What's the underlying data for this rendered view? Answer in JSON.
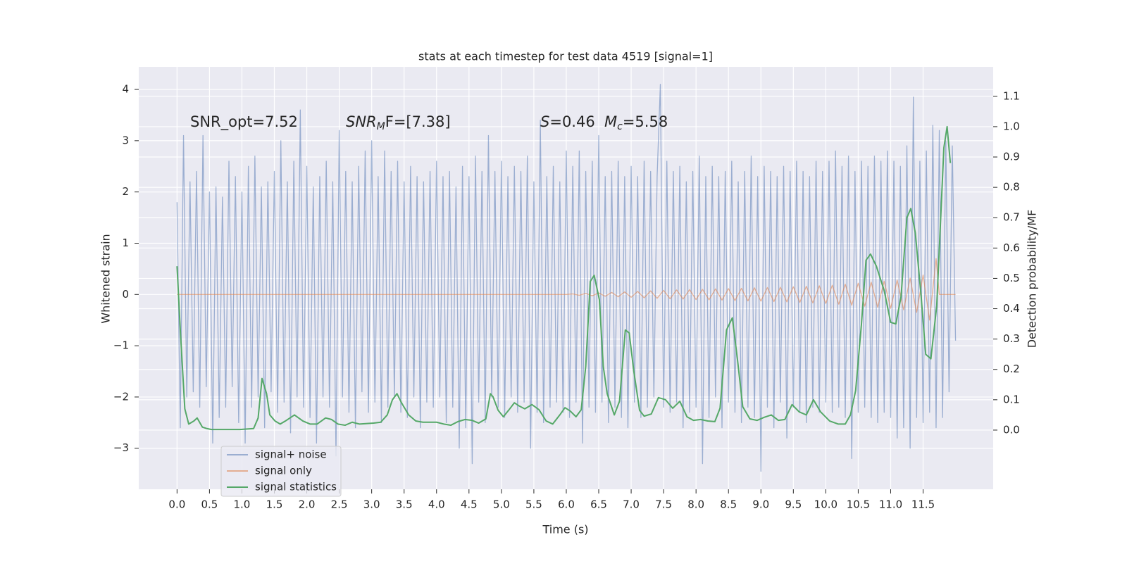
{
  "chart_data": {
    "type": "line",
    "title": "stats at each timestep for test data 4519 [signal=1]",
    "xlabel": "Time (s)",
    "ylabel": "Whitened strain",
    "y2label": "Detection probability/MF",
    "annotations": [
      {
        "parts": [
          "SNR_opt=7.52"
        ]
      },
      {
        "parts": [
          "SNR",
          "M",
          "F=[7.38]"
        ]
      },
      {
        "parts": [
          "S",
          "=0.46"
        ]
      },
      {
        "parts": [
          "M",
          "c",
          "=5.58"
        ]
      }
    ],
    "grid": true,
    "legend": "lower left",
    "xlim": [
      -0.59,
      12.58
    ],
    "ylim": [
      -3.8,
      4.44
    ],
    "y2lim": [
      -0.195,
      1.197
    ],
    "xticks": [
      {
        "value": 0,
        "label": "0.0"
      },
      {
        "value": 0.5,
        "label": "0.5"
      },
      {
        "value": 1,
        "label": "1.0"
      },
      {
        "value": 1.5,
        "label": "1.5"
      },
      {
        "value": 2,
        "label": "2.0"
      },
      {
        "value": 2.5,
        "label": "2.5"
      },
      {
        "value": 3,
        "label": "3.0"
      },
      {
        "value": 3.5,
        "label": "3.5"
      },
      {
        "value": 4,
        "label": "4.0"
      },
      {
        "value": 4.5,
        "label": "4.5"
      },
      {
        "value": 5,
        "label": "5.0"
      },
      {
        "value": 5.5,
        "label": "5.5"
      },
      {
        "value": 6,
        "label": "6.0"
      },
      {
        "value": 6.5,
        "label": "6.5"
      },
      {
        "value": 7,
        "label": "7.0"
      },
      {
        "value": 7.5,
        "label": "7.5"
      },
      {
        "value": 8,
        "label": "8.0"
      },
      {
        "value": 8.5,
        "label": "8.5"
      },
      {
        "value": 9,
        "label": "9.0"
      },
      {
        "value": 9.5,
        "label": "9.5"
      },
      {
        "value": 10,
        "label": "10.0"
      },
      {
        "value": 10.5,
        "label": "10.5"
      },
      {
        "value": 11,
        "label": "11.0"
      },
      {
        "value": 11.5,
        "label": "11.5"
      }
    ],
    "yticks": [
      {
        "value": -3,
        "label": "−3"
      },
      {
        "value": -2,
        "label": "−2"
      },
      {
        "value": -1,
        "label": "−1"
      },
      0,
      1,
      2,
      3,
      4
    ],
    "y2ticks": [
      {
        "value": 0,
        "label": "0.0"
      },
      {
        "value": 0.1,
        "label": "0.1"
      },
      {
        "value": 0.2,
        "label": "0.2"
      },
      {
        "value": 0.3,
        "label": "0.3"
      },
      {
        "value": 0.4,
        "label": "0.4"
      },
      {
        "value": 0.5,
        "label": "0.5"
      },
      {
        "value": 0.6,
        "label": "0.6"
      },
      {
        "value": 0.7,
        "label": "0.7"
      },
      {
        "value": 0.8,
        "label": "0.8"
      },
      {
        "value": 0.9,
        "label": "0.9"
      },
      {
        "value": 1,
        "label": "1.0"
      },
      {
        "value": 1.1,
        "label": "1.1"
      }
    ],
    "series": [
      {
        "name": "signal+ noise",
        "color": "#4c72b0",
        "opacity": 0.5,
        "x": [
          0,
          0.05,
          0.1,
          0.15,
          0.2,
          0.25,
          0.3,
          0.35,
          0.4,
          0.45,
          0.5,
          0.55,
          0.6,
          0.65,
          0.7,
          0.75,
          0.8,
          0.85,
          0.9,
          0.95,
          1,
          1.05,
          1.1,
          1.15,
          1.2,
          1.25,
          1.3,
          1.35,
          1.4,
          1.45,
          1.5,
          1.55,
          1.6,
          1.65,
          1.7,
          1.75,
          1.8,
          1.85,
          1.9,
          1.95,
          2,
          2.05,
          2.1,
          2.15,
          2.2,
          2.25,
          2.3,
          2.35,
          2.4,
          2.45,
          2.5,
          2.55,
          2.6,
          2.65,
          2.7,
          2.75,
          2.8,
          2.85,
          2.9,
          2.95,
          3,
          3.05,
          3.1,
          3.15,
          3.2,
          3.25,
          3.3,
          3.35,
          3.4,
          3.45,
          3.5,
          3.55,
          3.6,
          3.65,
          3.7,
          3.75,
          3.8,
          3.85,
          3.9,
          3.95,
          4,
          4.05,
          4.1,
          4.15,
          4.2,
          4.25,
          4.3,
          4.35,
          4.4,
          4.45,
          4.5,
          4.55,
          4.6,
          4.65,
          4.7,
          4.75,
          4.8,
          4.85,
          4.9,
          4.95,
          5,
          5.05,
          5.1,
          5.15,
          5.2,
          5.25,
          5.3,
          5.35,
          5.4,
          5.45,
          5.5,
          5.55,
          5.6,
          5.65,
          5.7,
          5.75,
          5.8,
          5.85,
          5.9,
          5.95,
          6,
          6.05,
          6.1,
          6.15,
          6.2,
          6.25,
          6.3,
          6.35,
          6.4,
          6.45,
          6.5,
          6.55,
          6.6,
          6.65,
          6.7,
          6.75,
          6.8,
          6.85,
          6.9,
          6.95,
          7,
          7.05,
          7.1,
          7.15,
          7.2,
          7.25,
          7.3,
          7.35,
          7.4,
          7.45,
          7.5,
          7.55,
          7.6,
          7.65,
          7.7,
          7.75,
          7.8,
          7.85,
          7.9,
          7.95,
          8,
          8.05,
          8.1,
          8.15,
          8.2,
          8.25,
          8.3,
          8.35,
          8.4,
          8.45,
          8.5,
          8.55,
          8.6,
          8.65,
          8.7,
          8.75,
          8.8,
          8.85,
          8.9,
          8.95,
          9,
          9.05,
          9.1,
          9.15,
          9.2,
          9.25,
          9.3,
          9.35,
          9.4,
          9.45,
          9.5,
          9.55,
          9.6,
          9.65,
          9.7,
          9.75,
          9.8,
          9.85,
          9.9,
          9.95,
          10,
          10.05,
          10.1,
          10.15,
          10.2,
          10.25,
          10.3,
          10.35,
          10.4,
          10.45,
          10.5,
          10.55,
          10.6,
          10.65,
          10.7,
          10.75,
          10.8,
          10.85,
          10.9,
          10.95,
          11,
          11.05,
          11.1,
          11.15,
          11.2,
          11.25,
          11.3,
          11.35,
          11.4,
          11.45,
          11.5,
          11.55,
          11.6,
          11.65,
          11.7,
          11.75,
          11.8,
          11.85,
          11.9,
          11.95,
          12
        ],
        "values": [
          1.8,
          -2.6,
          3.1,
          -2.0,
          2.2,
          -1.9,
          2.4,
          -2.2,
          3.1,
          -1.8,
          2.0,
          -2.9,
          2.1,
          -2.4,
          1.9,
          -2.2,
          2.6,
          -1.8,
          2.3,
          -2.5,
          2.0,
          -2.9,
          2.5,
          -2.2,
          2.7,
          -2.0,
          2.1,
          -2.6,
          2.2,
          -1.9,
          2.4,
          -2.3,
          3.0,
          -2.1,
          2.2,
          -2.7,
          2.6,
          -2.0,
          3.6,
          -2.2,
          2.5,
          -2.4,
          2.1,
          -2.9,
          2.3,
          -2.0,
          2.6,
          -2.2,
          2.2,
          -3.15,
          3.2,
          -2.0,
          2.4,
          -2.3,
          2.2,
          -2.6,
          2.5,
          -1.9,
          2.8,
          -2.3,
          3.0,
          -2.1,
          2.3,
          -2.5,
          2.8,
          -2.2,
          2.4,
          -2.0,
          2.6,
          -2.3,
          2.2,
          -2.4,
          2.5,
          -2.0,
          2.3,
          -2.6,
          2.2,
          -2.1,
          2.4,
          -2.2,
          2.6,
          -2.0,
          2.3,
          -2.5,
          2.4,
          -2.2,
          2.1,
          -3.0,
          2.5,
          -2.6,
          2.3,
          -3.3,
          2.7,
          -2.1,
          2.4,
          -2.5,
          3.1,
          -2.0,
          2.4,
          -2.2,
          2.6,
          -2.4,
          2.3,
          -2.0,
          2.5,
          -2.3,
          2.4,
          -2.1,
          2.7,
          -3.0,
          2.2,
          -2.3,
          3.4,
          -2.5,
          2.3,
          -2.2,
          2.5,
          -2.1,
          2.2,
          -2.3,
          2.8,
          -2.4,
          2.5,
          -2.1,
          2.8,
          -2.9,
          2.4,
          -2.2,
          2.6,
          -2.3,
          3.1,
          -2.1,
          2.3,
          -2.5,
          2.4,
          -2.2,
          2.6,
          -2.4,
          2.3,
          -2.6,
          2.5,
          -2.1,
          2.3,
          -2.4,
          2.6,
          -2.2,
          2.4,
          -2.0,
          2.3,
          4.1,
          -2.2,
          2.6,
          -2.3,
          2.4,
          -2.1,
          2.5,
          -2.6,
          2.2,
          -2.3,
          2.4,
          -2.2,
          2.7,
          -3.3,
          2.3,
          -2.4,
          2.5,
          -2.0,
          2.3,
          -2.6,
          2.4,
          -2.1,
          2.6,
          -2.3,
          2.2,
          -2.5,
          2.4,
          -2.2,
          2.7,
          -2.4,
          2.3,
          -3.45,
          2.5,
          -2.2,
          2.4,
          -2.6,
          2.3,
          -2.1,
          2.5,
          -2.8,
          2.4,
          -2.2,
          2.6,
          -2.3,
          2.4,
          -2.5,
          2.3,
          -2.2,
          2.6,
          -2.3,
          2.4,
          -2.1,
          2.6,
          -2.3,
          2.8,
          -2.2,
          2.5,
          -2.4,
          2.7,
          -3.2,
          2.4,
          -2.3,
          2.6,
          -2.2,
          2.5,
          -2.4,
          2.7,
          -2.5,
          2.6,
          -2.3,
          2.8,
          -2.4,
          2.6,
          -2.8,
          2.5,
          -2.6,
          2.9,
          -3.0,
          3.85,
          -2.4,
          2.6,
          -2.5,
          2.8,
          -2.3,
          3.3,
          -2.6,
          3.2,
          -2.4,
          3.0,
          -1.9,
          2.9,
          -0.9
        ]
      },
      {
        "name": "signal only",
        "color": "#dd8452",
        "opacity": 0.6,
        "x": [
          0,
          6.0,
          6.1,
          6.2,
          6.3,
          6.4,
          6.5,
          6.6,
          6.7,
          6.8,
          6.9,
          7.0,
          7.1,
          7.2,
          7.3,
          7.4,
          7.5,
          7.6,
          7.7,
          7.8,
          7.9,
          8.0,
          8.1,
          8.2,
          8.3,
          8.4,
          8.5,
          8.6,
          8.7,
          8.8,
          8.9,
          9.0,
          9.1,
          9.2,
          9.3,
          9.4,
          9.5,
          9.6,
          9.7,
          9.8,
          9.9,
          10.0,
          10.1,
          10.2,
          10.3,
          10.4,
          10.5,
          10.6,
          10.7,
          10.8,
          10.9,
          11.0,
          11.1,
          11.2,
          11.3,
          11.4,
          11.5,
          11.6,
          11.7,
          11.75,
          12.0
        ],
        "values": [
          0,
          0,
          0.01,
          -0.015,
          0.02,
          -0.025,
          0.03,
          -0.035,
          0.04,
          -0.045,
          0.05,
          -0.055,
          0.06,
          -0.065,
          0.07,
          -0.075,
          0.08,
          -0.085,
          0.09,
          -0.09,
          0.095,
          -0.1,
          0.1,
          -0.105,
          0.11,
          -0.11,
          0.115,
          -0.12,
          0.12,
          -0.125,
          0.13,
          -0.13,
          0.135,
          -0.14,
          0.14,
          -0.145,
          0.15,
          -0.155,
          0.16,
          -0.165,
          0.17,
          -0.175,
          0.18,
          -0.19,
          0.2,
          -0.21,
          0.22,
          -0.23,
          0.24,
          -0.25,
          0.26,
          -0.27,
          0.28,
          -0.3,
          0.32,
          -0.35,
          0.38,
          -0.5,
          0.7,
          0,
          0
        ]
      },
      {
        "name": "signal statistics",
        "color": "#55a868",
        "opacity": 1,
        "axis": "y2",
        "x": [
          0,
          0.05,
          0.12,
          0.18,
          0.26,
          0.31,
          0.39,
          0.46,
          0.53,
          0.75,
          0.97,
          1.18,
          1.25,
          1.31,
          1.38,
          1.43,
          1.51,
          1.59,
          1.67,
          1.81,
          1.94,
          2.05,
          2.16,
          2.29,
          2.38,
          2.48,
          2.59,
          2.7,
          2.81,
          3.03,
          3.14,
          3.24,
          3.32,
          3.39,
          3.46,
          3.57,
          3.68,
          3.79,
          4.0,
          4.11,
          4.22,
          4.33,
          4.44,
          4.55,
          4.65,
          4.76,
          4.83,
          4.87,
          4.95,
          5.03,
          5.11,
          5.2,
          5.27,
          5.36,
          5.47,
          5.58,
          5.69,
          5.79,
          5.9,
          5.98,
          6.06,
          6.15,
          6.23,
          6.3,
          6.37,
          6.43,
          6.51,
          6.57,
          6.63,
          6.74,
          6.82,
          6.91,
          6.97,
          7.04,
          7.13,
          7.2,
          7.31,
          7.42,
          7.53,
          7.64,
          7.75,
          7.86,
          7.96,
          8.07,
          8.18,
          8.29,
          8.37,
          8.47,
          8.56,
          8.64,
          8.72,
          8.83,
          8.94,
          9.05,
          9.16,
          9.27,
          9.37,
          9.48,
          9.59,
          9.7,
          9.81,
          9.92,
          10.06,
          10.19,
          10.3,
          10.38,
          10.46,
          10.55,
          10.62,
          10.69,
          10.78,
          10.9,
          11.0,
          11.08,
          11.16,
          11.25,
          11.31,
          11.38,
          11.47,
          11.54,
          11.62,
          11.71,
          11.82,
          11.87,
          11.92
        ],
        "values": [
          0.54,
          0.33,
          0.07,
          0.02,
          0.03,
          0.04,
          0.01,
          0.005,
          0.002,
          0.002,
          0.002,
          0.005,
          0.04,
          0.17,
          0.12,
          0.05,
          0.03,
          0.02,
          0.03,
          0.05,
          0.03,
          0.02,
          0.02,
          0.04,
          0.035,
          0.02,
          0.016,
          0.026,
          0.02,
          0.023,
          0.026,
          0.05,
          0.1,
          0.12,
          0.09,
          0.05,
          0.03,
          0.026,
          0.026,
          0.02,
          0.016,
          0.028,
          0.035,
          0.032,
          0.023,
          0.037,
          0.12,
          0.11,
          0.065,
          0.044,
          0.065,
          0.09,
          0.08,
          0.07,
          0.084,
          0.067,
          0.03,
          0.02,
          0.05,
          0.074,
          0.063,
          0.044,
          0.067,
          0.21,
          0.49,
          0.51,
          0.43,
          0.21,
          0.12,
          0.05,
          0.095,
          0.33,
          0.32,
          0.195,
          0.065,
          0.046,
          0.053,
          0.107,
          0.1,
          0.072,
          0.095,
          0.044,
          0.032,
          0.035,
          0.03,
          0.028,
          0.072,
          0.33,
          0.37,
          0.23,
          0.077,
          0.037,
          0.032,
          0.042,
          0.05,
          0.032,
          0.035,
          0.084,
          0.06,
          0.05,
          0.1,
          0.06,
          0.03,
          0.02,
          0.02,
          0.05,
          0.13,
          0.35,
          0.56,
          0.58,
          0.54,
          0.46,
          0.355,
          0.35,
          0.44,
          0.7,
          0.73,
          0.65,
          0.44,
          0.25,
          0.235,
          0.41,
          0.93,
          1.0,
          0.88
        ]
      }
    ]
  }
}
